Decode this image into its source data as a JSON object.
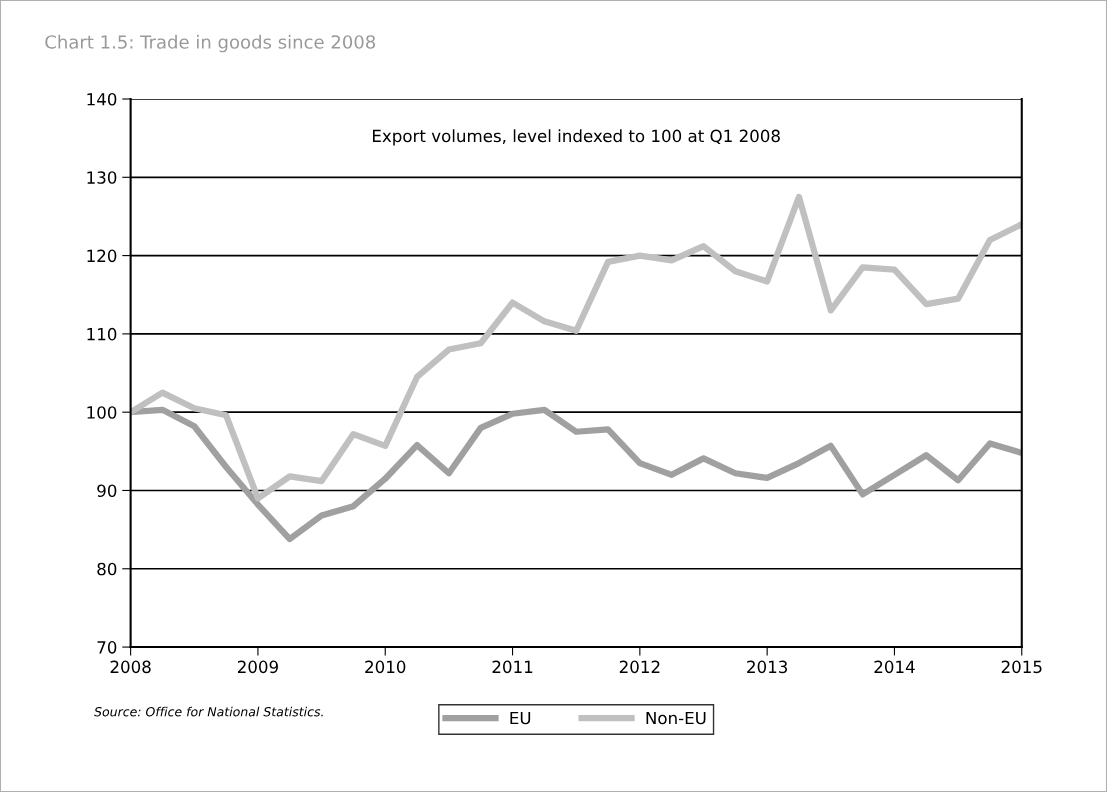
{
  "chart_data": {
    "type": "line",
    "title": "Chart 1.5: Trade in goods since 2008",
    "subtitle": "Export volumes, level indexed to 100 at Q1 2008",
    "x": [
      2008,
      2008.25,
      2008.5,
      2008.75,
      2009,
      2009.25,
      2009.5,
      2009.75,
      2010,
      2010.25,
      2010.5,
      2010.75,
      2011,
      2011.25,
      2011.5,
      2011.75,
      2012,
      2012.25,
      2012.5,
      2012.75,
      2013,
      2013.25,
      2013.5,
      2013.75,
      2014,
      2014.25,
      2014.5,
      2014.75,
      2015
    ],
    "series": [
      {
        "name": "EU",
        "color": "#a0a0a0",
        "values": [
          100,
          100.3,
          98.2,
          93,
          88.2,
          83.8,
          86.8,
          88,
          91.5,
          95.8,
          92.2,
          98,
          99.8,
          100.3,
          97.5,
          97.8,
          93.5,
          92,
          94.1,
          92.2,
          91.6,
          93.5,
          95.7,
          89.5,
          92,
          94.5,
          91.3,
          96,
          94.8
        ]
      },
      {
        "name": "Non-EU",
        "color": "#c0c0c0",
        "values": [
          100,
          102.5,
          100.5,
          99.6,
          89,
          91.8,
          91.2,
          97.2,
          95.7,
          104.5,
          108,
          108.8,
          114,
          111.6,
          110.4,
          119.2,
          120,
          119.4,
          121.2,
          118,
          116.7,
          127.5,
          113,
          118.5,
          118.2,
          113.8,
          114.5,
          122,
          124
        ]
      }
    ],
    "xlim": [
      2008,
      2015
    ],
    "xticks": [
      2008,
      2009,
      2010,
      2011,
      2012,
      2013,
      2014,
      2015
    ],
    "ylim": [
      70,
      140
    ],
    "yticks": [
      70,
      80,
      90,
      100,
      110,
      120,
      130,
      140
    ],
    "grid": "y",
    "legend": "bottom",
    "marker": "none",
    "line_style": "solid",
    "annotations": [
      "Source: Office for National Statistics."
    ]
  }
}
